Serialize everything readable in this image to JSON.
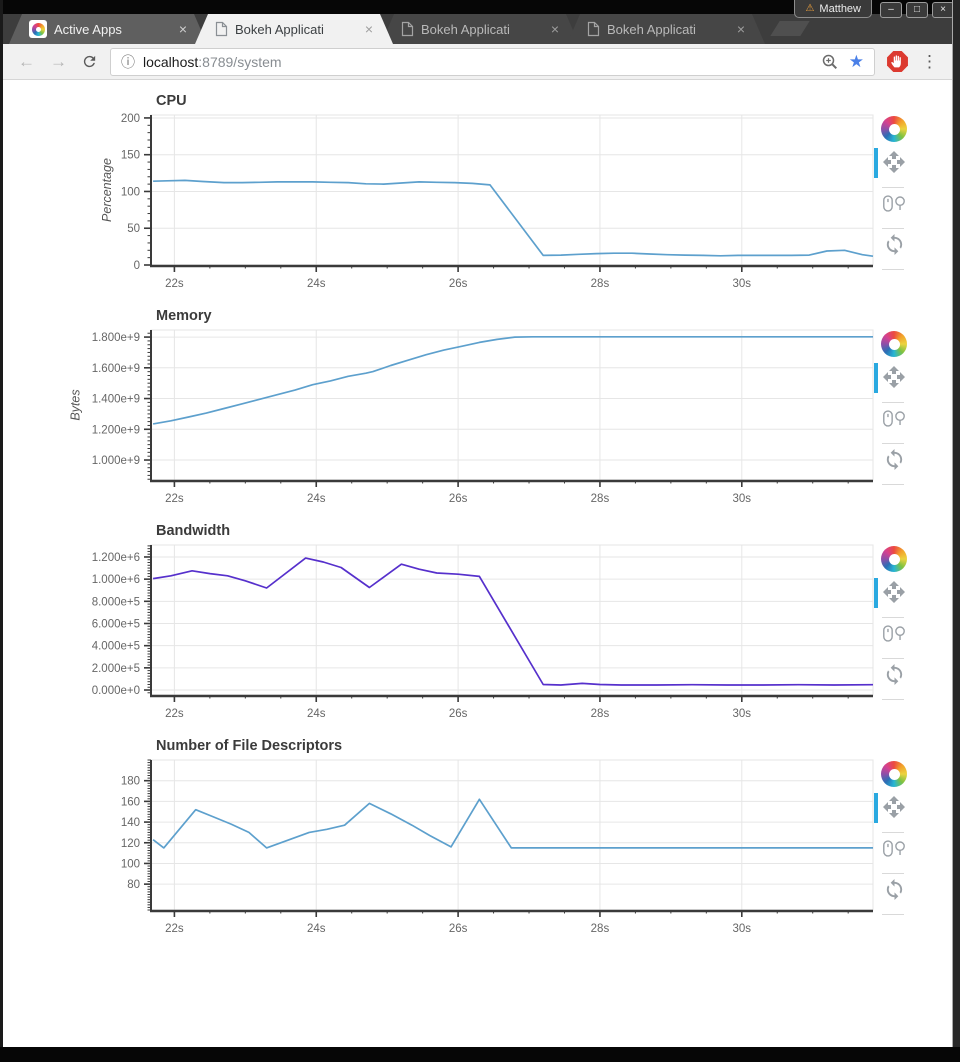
{
  "browser": {
    "profile": {
      "label": "Matthew",
      "warning_icon": "⚠"
    },
    "window_controls": {
      "minimize": "–",
      "maximize": "□",
      "close": "×"
    },
    "tabs": [
      {
        "label": "Active Apps",
        "favicon": "bokeh-logo",
        "active": false,
        "close_label": "×"
      },
      {
        "label": "Bokeh Applicati",
        "favicon": "document-icon",
        "active": true,
        "close_label": "×"
      },
      {
        "label": "Bokeh Applicati",
        "favicon": "document-icon",
        "active": false,
        "close_label": "×"
      },
      {
        "label": "Bokeh Applicati",
        "favicon": "document-icon",
        "active": false,
        "close_label": "×"
      }
    ],
    "nav": {
      "back": "←",
      "forward": "→"
    },
    "address": {
      "info_icon": "ⓘ",
      "host": "localhost",
      "path": ":8789/system"
    },
    "bookmark_star": "★",
    "menu_icon": "⋮"
  },
  "plot_toolbar": {
    "logo": "bokeh-logo",
    "tools": [
      {
        "name": "pan",
        "active": true
      },
      {
        "name": "wheel-zoom",
        "active": false
      },
      {
        "name": "reset",
        "active": false
      }
    ],
    "active_indicator_color": "#2aa9e0"
  },
  "chart_style": {
    "title_color": "#3b3b3b",
    "tick_color": "#666666",
    "axis_label_color": "#555555",
    "grid_color": "#e6e6e6",
    "axis_color": "#3a3a3a",
    "blue_line": "#5da0cd",
    "violet_line": "#5630cc"
  },
  "chart_data": [
    {
      "id": "cpu",
      "type": "line",
      "title": "CPU",
      "y_axis_label": "Percentage",
      "x_range": [
        21.67,
        31.85
      ],
      "y_range": [
        0,
        204
      ],
      "x_ticks": [
        {
          "v": 22,
          "label": "22s"
        },
        {
          "v": 24,
          "label": "24s"
        },
        {
          "v": 26,
          "label": "26s"
        },
        {
          "v": 28,
          "label": "28s"
        },
        {
          "v": 30,
          "label": "30s"
        }
      ],
      "y_ticks": [
        {
          "v": 0,
          "label": "0"
        },
        {
          "v": 50,
          "label": "50"
        },
        {
          "v": 100,
          "label": "100"
        },
        {
          "v": 150,
          "label": "150"
        },
        {
          "v": 200,
          "label": "200"
        }
      ],
      "x_minor_step": 0.5,
      "y_minor_step": 10,
      "color": "#5da0cd",
      "points": [
        [
          21.7,
          114
        ],
        [
          21.9,
          114.5
        ],
        [
          22.15,
          115
        ],
        [
          22.4,
          113.5
        ],
        [
          22.7,
          112
        ],
        [
          22.95,
          112
        ],
        [
          23.2,
          112.5
        ],
        [
          23.45,
          113
        ],
        [
          23.7,
          113
        ],
        [
          23.95,
          113
        ],
        [
          24.2,
          112.5
        ],
        [
          24.45,
          112
        ],
        [
          24.7,
          110.5
        ],
        [
          24.95,
          110
        ],
        [
          25.2,
          111.5
        ],
        [
          25.45,
          113
        ],
        [
          25.7,
          112.5
        ],
        [
          25.95,
          112
        ],
        [
          26.2,
          111
        ],
        [
          26.45,
          109
        ],
        [
          27.2,
          13
        ],
        [
          27.45,
          13.5
        ],
        [
          27.7,
          14.5
        ],
        [
          27.95,
          15.5
        ],
        [
          28.2,
          16
        ],
        [
          28.45,
          16
        ],
        [
          28.7,
          15
        ],
        [
          28.95,
          14
        ],
        [
          29.2,
          13.5
        ],
        [
          29.45,
          13
        ],
        [
          29.7,
          12.5
        ],
        [
          29.95,
          13
        ],
        [
          30.2,
          13
        ],
        [
          30.45,
          13
        ],
        [
          30.7,
          13
        ],
        [
          30.95,
          13.5
        ],
        [
          31.2,
          19
        ],
        [
          31.45,
          20
        ],
        [
          31.7,
          14
        ],
        [
          31.85,
          12
        ]
      ]
    },
    {
      "id": "memory",
      "type": "line",
      "title": "Memory",
      "y_axis_label": "Bytes",
      "x_range": [
        21.67,
        31.85
      ],
      "y_range": [
        870000000.0,
        1846000000.0
      ],
      "x_ticks": [
        {
          "v": 22,
          "label": "22s"
        },
        {
          "v": 24,
          "label": "24s"
        },
        {
          "v": 26,
          "label": "26s"
        },
        {
          "v": 28,
          "label": "28s"
        },
        {
          "v": 30,
          "label": "30s"
        }
      ],
      "y_ticks": [
        {
          "v": 1000000000.0,
          "label": "1.000e+9"
        },
        {
          "v": 1200000000.0,
          "label": "1.200e+9"
        },
        {
          "v": 1400000000.0,
          "label": "1.400e+9"
        },
        {
          "v": 1600000000.0,
          "label": "1.600e+9"
        },
        {
          "v": 1800000000.0,
          "label": "1.800e+9"
        }
      ],
      "x_minor_step": 0.5,
      "y_minor_step": 25000000.0,
      "color": "#5da0cd",
      "points": [
        [
          21.7,
          1235000000.0
        ],
        [
          21.95,
          1255000000.0
        ],
        [
          22.2,
          1280000000.0
        ],
        [
          22.45,
          1305000000.0
        ],
        [
          22.7,
          1335000000.0
        ],
        [
          22.95,
          1365000000.0
        ],
        [
          23.2,
          1395000000.0
        ],
        [
          23.45,
          1425000000.0
        ],
        [
          23.7,
          1455000000.0
        ],
        [
          23.95,
          1490000000.0
        ],
        [
          24.2,
          1515000000.0
        ],
        [
          24.45,
          1545000000.0
        ],
        [
          24.7,
          1565000000.0
        ],
        [
          24.8,
          1575000000.0
        ],
        [
          25.05,
          1615000000.0
        ],
        [
          25.3,
          1650000000.0
        ],
        [
          25.55,
          1685000000.0
        ],
        [
          25.8,
          1715000000.0
        ],
        [
          26.05,
          1740000000.0
        ],
        [
          26.3,
          1765000000.0
        ],
        [
          26.55,
          1785000000.0
        ],
        [
          26.8,
          1800000000.0
        ],
        [
          27.05,
          1802000000.0
        ],
        [
          27.55,
          1802000000.0
        ],
        [
          28.05,
          1802000000.0
        ],
        [
          28.55,
          1802000000.0
        ],
        [
          29.05,
          1802000000.0
        ],
        [
          29.55,
          1802000000.0
        ],
        [
          30.05,
          1802000000.0
        ],
        [
          30.55,
          1802000000.0
        ],
        [
          31.05,
          1802000000.0
        ],
        [
          31.55,
          1802000000.0
        ],
        [
          31.85,
          1802000000.0
        ]
      ]
    },
    {
      "id": "bandwidth",
      "type": "line",
      "title": "Bandwidth",
      "y_axis_label": null,
      "x_range": [
        21.67,
        31.85
      ],
      "y_range": [
        -45000,
        1308000
      ],
      "x_ticks": [
        {
          "v": 22,
          "label": "22s"
        },
        {
          "v": 24,
          "label": "24s"
        },
        {
          "v": 26,
          "label": "26s"
        },
        {
          "v": 28,
          "label": "28s"
        },
        {
          "v": 30,
          "label": "30s"
        }
      ],
      "y_ticks": [
        {
          "v": 0,
          "label": "0.000e+0"
        },
        {
          "v": 200000.0,
          "label": "2.000e+5"
        },
        {
          "v": 400000.0,
          "label": "4.000e+5"
        },
        {
          "v": 600000.0,
          "label": "6.000e+5"
        },
        {
          "v": 800000.0,
          "label": "8.000e+5"
        },
        {
          "v": 1000000.0,
          "label": "1.000e+6"
        },
        {
          "v": 1200000.0,
          "label": "1.200e+6"
        }
      ],
      "x_minor_step": 0.5,
      "y_minor_step": 25000.0,
      "color": "#5630cc",
      "points": [
        [
          21.7,
          1005000.0
        ],
        [
          21.95,
          1030000.0
        ],
        [
          22.25,
          1075000.0
        ],
        [
          22.5,
          1050000.0
        ],
        [
          22.75,
          1030000.0
        ],
        [
          23.0,
          985000.0
        ],
        [
          23.3,
          920000.0
        ],
        [
          23.85,
          1190000.0
        ],
        [
          24.1,
          1155000.0
        ],
        [
          24.35,
          1105000.0
        ],
        [
          24.75,
          925000.0
        ],
        [
          25.2,
          1135000.0
        ],
        [
          25.45,
          1090000.0
        ],
        [
          25.7,
          1055000.0
        ],
        [
          26.0,
          1045000.0
        ],
        [
          26.3,
          1025000.0
        ],
        [
          27.2,
          50000.0
        ],
        [
          27.45,
          45000.0
        ],
        [
          27.75,
          60000.0
        ],
        [
          28.0,
          50000.0
        ],
        [
          28.3,
          45000.0
        ],
        [
          28.8,
          45000.0
        ],
        [
          29.3,
          48000.0
        ],
        [
          29.8,
          45000.0
        ],
        [
          30.3,
          45000.0
        ],
        [
          30.8,
          48000.0
        ],
        [
          31.3,
          45000.0
        ],
        [
          31.85,
          48000.0
        ]
      ]
    },
    {
      "id": "file-descriptors",
      "type": "line",
      "title": "Number of File Descriptors",
      "y_axis_label": null,
      "x_range": [
        21.67,
        31.85
      ],
      "y_range": [
        55,
        200
      ],
      "x_ticks": [
        {
          "v": 22,
          "label": "22s"
        },
        {
          "v": 24,
          "label": "24s"
        },
        {
          "v": 26,
          "label": "26s"
        },
        {
          "v": 28,
          "label": "28s"
        },
        {
          "v": 30,
          "label": "30s"
        }
      ],
      "y_ticks": [
        {
          "v": 80,
          "label": "80"
        },
        {
          "v": 100,
          "label": "100"
        },
        {
          "v": 120,
          "label": "120"
        },
        {
          "v": 140,
          "label": "140"
        },
        {
          "v": 160,
          "label": "160"
        },
        {
          "v": 180,
          "label": "180"
        }
      ],
      "x_minor_step": 0.5,
      "y_minor_step": 2.5,
      "color": "#5da0cd",
      "points": [
        [
          21.7,
          123
        ],
        [
          21.85,
          115
        ],
        [
          22.3,
          152
        ],
        [
          22.55,
          145
        ],
        [
          22.8,
          138
        ],
        [
          23.05,
          130
        ],
        [
          23.3,
          115
        ],
        [
          23.9,
          130
        ],
        [
          24.15,
          133
        ],
        [
          24.4,
          137
        ],
        [
          24.75,
          158
        ],
        [
          25.05,
          148
        ],
        [
          25.35,
          137
        ],
        [
          25.6,
          127
        ],
        [
          25.9,
          116
        ],
        [
          26.3,
          162
        ],
        [
          26.75,
          115
        ],
        [
          27.25,
          115
        ],
        [
          27.75,
          115
        ],
        [
          28.25,
          115
        ],
        [
          28.75,
          115
        ],
        [
          29.25,
          115
        ],
        [
          29.75,
          115
        ],
        [
          30.25,
          115
        ],
        [
          30.75,
          115
        ],
        [
          31.25,
          115
        ],
        [
          31.85,
          115
        ]
      ]
    }
  ]
}
